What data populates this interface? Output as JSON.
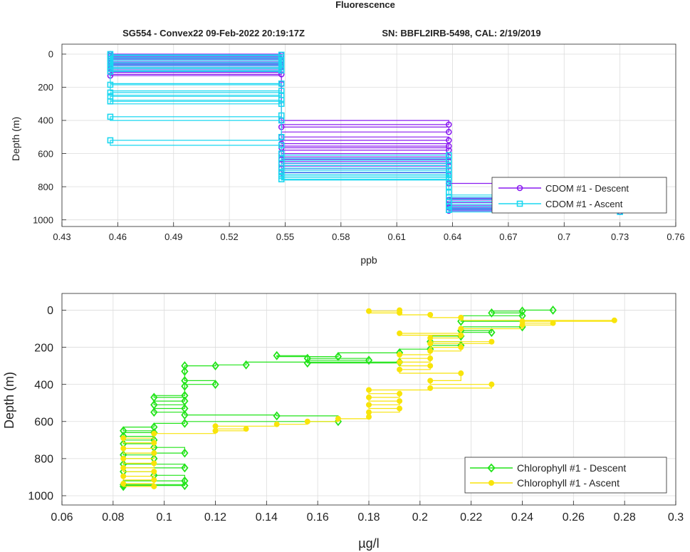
{
  "figure": {
    "title": "Fluorescence",
    "subtitle_left": "SG554 - Convex22 09-Feb-2022 20:19:17Z",
    "subtitle_right": "SN: BBFL2IRB-5498, CAL: 2/19/2019"
  },
  "chart_data": [
    {
      "type": "line",
      "xlabel": "ppb",
      "ylabel": "Depth (m)",
      "xlim": [
        0.43,
        0.76
      ],
      "ylim": [
        1040,
        -60
      ],
      "y_reversed": true,
      "grid": true,
      "legend_position": "lower-right",
      "xticks": [
        "0.43",
        "0.46",
        "0.49",
        "0.52",
        "0.55",
        "0.58",
        "0.61",
        "0.64",
        "0.67",
        "0.7",
        "0.73",
        "0.76"
      ],
      "yticks": [
        "0",
        "200",
        "400",
        "600",
        "800",
        "1000"
      ],
      "series": [
        {
          "name": "CDOM #1 - Descent",
          "color": "#8a1cf0",
          "marker": "circle",
          "points": [
            [
              0.456,
              0
            ],
            [
              0.548,
              5
            ],
            [
              0.456,
              12
            ],
            [
              0.548,
              18
            ],
            [
              0.456,
              25
            ],
            [
              0.548,
              32
            ],
            [
              0.456,
              40
            ],
            [
              0.548,
              48
            ],
            [
              0.456,
              56
            ],
            [
              0.548,
              64
            ],
            [
              0.456,
              72
            ],
            [
              0.548,
              80
            ],
            [
              0.456,
              90
            ],
            [
              0.548,
              100
            ],
            [
              0.456,
              110
            ],
            [
              0.548,
              122
            ],
            [
              0.456,
              130
            ],
            [
              0.548,
              180
            ],
            [
              0.548,
              400
            ],
            [
              0.638,
              425
            ],
            [
              0.548,
              440
            ],
            [
              0.638,
              470
            ],
            [
              0.548,
              500
            ],
            [
              0.638,
              520
            ],
            [
              0.548,
              540
            ],
            [
              0.638,
              555
            ],
            [
              0.548,
              565
            ],
            [
              0.638,
              580
            ],
            [
              0.548,
              600
            ],
            [
              0.638,
              620
            ],
            [
              0.548,
              635
            ],
            [
              0.638,
              648
            ],
            [
              0.548,
              660
            ],
            [
              0.638,
              675
            ],
            [
              0.548,
              690
            ],
            [
              0.638,
              700
            ],
            [
              0.548,
              715
            ],
            [
              0.638,
              730
            ],
            [
              0.638,
              780
            ],
            [
              0.73,
              870
            ],
            [
              0.638,
              880
            ],
            [
              0.73,
              895
            ],
            [
              0.638,
              905
            ],
            [
              0.73,
              915
            ],
            [
              0.638,
              925
            ],
            [
              0.73,
              935
            ],
            [
              0.638,
              945
            ],
            [
              0.73,
              952
            ]
          ]
        },
        {
          "name": "CDOM #1 - Ascent",
          "color": "#1ad7f0",
          "marker": "square",
          "points": [
            [
              0.73,
              952
            ],
            [
              0.638,
              940
            ],
            [
              0.73,
              930
            ],
            [
              0.638,
              918
            ],
            [
              0.73,
              905
            ],
            [
              0.638,
              890
            ],
            [
              0.73,
              875
            ],
            [
              0.638,
              862
            ],
            [
              0.73,
              850
            ],
            [
              0.638,
              835
            ],
            [
              0.638,
              800
            ],
            [
              0.638,
              760
            ],
            [
              0.548,
              755
            ],
            [
              0.638,
              745
            ],
            [
              0.548,
              735
            ],
            [
              0.638,
              725
            ],
            [
              0.548,
              712
            ],
            [
              0.638,
              700
            ],
            [
              0.548,
              688
            ],
            [
              0.638,
              672
            ],
            [
              0.548,
              658
            ],
            [
              0.638,
              640
            ],
            [
              0.548,
              628
            ],
            [
              0.638,
              610
            ],
            [
              0.548,
              600
            ],
            [
              0.548,
              550
            ],
            [
              0.456,
              520
            ],
            [
              0.548,
              500
            ],
            [
              0.548,
              400
            ],
            [
              0.456,
              378
            ],
            [
              0.548,
              370
            ],
            [
              0.548,
              300
            ],
            [
              0.456,
              285
            ],
            [
              0.548,
              278
            ],
            [
              0.456,
              255
            ],
            [
              0.548,
              248
            ],
            [
              0.456,
              232
            ],
            [
              0.548,
              222
            ],
            [
              0.456,
              185
            ],
            [
              0.548,
              178
            ],
            [
              0.456,
              105
            ],
            [
              0.548,
              98
            ],
            [
              0.456,
              88
            ],
            [
              0.548,
              80
            ],
            [
              0.456,
              70
            ],
            [
              0.548,
              60
            ],
            [
              0.456,
              50
            ],
            [
              0.548,
              40
            ],
            [
              0.456,
              30
            ],
            [
              0.548,
              20
            ],
            [
              0.456,
              10
            ],
            [
              0.548,
              4
            ],
            [
              0.456,
              0
            ]
          ]
        }
      ]
    },
    {
      "type": "line",
      "xlabel": "µg/l",
      "ylabel": "Depth (m)",
      "xlim": [
        0.06,
        0.3
      ],
      "ylim": [
        1050,
        -90
      ],
      "y_reversed": true,
      "grid": true,
      "legend_position": "lower-right",
      "xticks": [
        "0.06",
        "0.08",
        "0.1",
        "0.12",
        "0.14",
        "0.16",
        "0.18",
        "0.2",
        "0.22",
        "0.24",
        "0.26",
        "0.28",
        "0.3"
      ],
      "yticks": [
        "0",
        "200",
        "400",
        "600",
        "800",
        "1000"
      ],
      "series": [
        {
          "name": "Chlorophyll #1 - Descent",
          "color": "#22e41a",
          "marker": "diamond",
          "points": [
            [
              0.252,
              0
            ],
            [
              0.24,
              5
            ],
            [
              0.228,
              15
            ],
            [
              0.24,
              30
            ],
            [
              0.216,
              60
            ],
            [
              0.24,
              90
            ],
            [
              0.216,
              110
            ],
            [
              0.228,
              120
            ],
            [
              0.216,
              140
            ],
            [
              0.204,
              170
            ],
            [
              0.216,
              190
            ],
            [
              0.204,
              210
            ],
            [
              0.192,
              230
            ],
            [
              0.168,
              250
            ],
            [
              0.144,
              245
            ],
            [
              0.156,
              260
            ],
            [
              0.18,
              270
            ],
            [
              0.156,
              285
            ],
            [
              0.192,
              280
            ],
            [
              0.132,
              295
            ],
            [
              0.12,
              300
            ],
            [
              0.108,
              300
            ],
            [
              0.108,
              330
            ],
            [
              0.108,
              380
            ],
            [
              0.12,
              400
            ],
            [
              0.108,
              410
            ],
            [
              0.108,
              460
            ],
            [
              0.096,
              470
            ],
            [
              0.108,
              490
            ],
            [
              0.096,
              510
            ],
            [
              0.108,
              530
            ],
            [
              0.096,
              550
            ],
            [
              0.108,
              565
            ],
            [
              0.144,
              570
            ],
            [
              0.168,
              600
            ],
            [
              0.108,
              610
            ],
            [
              0.096,
              630
            ],
            [
              0.084,
              650
            ],
            [
              0.096,
              660
            ],
            [
              0.084,
              680
            ],
            [
              0.096,
              700
            ],
            [
              0.084,
              720
            ],
            [
              0.096,
              740
            ],
            [
              0.108,
              770
            ],
            [
              0.084,
              780
            ],
            [
              0.096,
              800
            ],
            [
              0.084,
              830
            ],
            [
              0.108,
              850
            ],
            [
              0.084,
              870
            ],
            [
              0.096,
              890
            ],
            [
              0.108,
              920
            ],
            [
              0.084,
              940
            ],
            [
              0.108,
              945
            ],
            [
              0.084,
              950
            ]
          ]
        },
        {
          "name": "Chlorophyll #1 - Ascent",
          "color": "#f8e40a",
          "marker": "circle",
          "points": [
            [
              0.096,
              950
            ],
            [
              0.084,
              935
            ],
            [
              0.096,
              915
            ],
            [
              0.084,
              895
            ],
            [
              0.096,
              870
            ],
            [
              0.084,
              850
            ],
            [
              0.096,
              825
            ],
            [
              0.084,
              800
            ],
            [
              0.096,
              770
            ],
            [
              0.084,
              745
            ],
            [
              0.096,
              715
            ],
            [
              0.084,
              690
            ],
            [
              0.096,
              665
            ],
            [
              0.12,
              650
            ],
            [
              0.132,
              640
            ],
            [
              0.12,
              625
            ],
            [
              0.144,
              615
            ],
            [
              0.156,
              600
            ],
            [
              0.168,
              585
            ],
            [
              0.18,
              575
            ],
            [
              0.18,
              550
            ],
            [
              0.192,
              530
            ],
            [
              0.18,
              510
            ],
            [
              0.192,
              490
            ],
            [
              0.18,
              470
            ],
            [
              0.192,
              450
            ],
            [
              0.18,
              430
            ],
            [
              0.204,
              420
            ],
            [
              0.228,
              400
            ],
            [
              0.204,
              380
            ],
            [
              0.216,
              340
            ],
            [
              0.192,
              320
            ],
            [
              0.204,
              300
            ],
            [
              0.192,
              280
            ],
            [
              0.204,
              260
            ],
            [
              0.192,
              240
            ],
            [
              0.204,
              220
            ],
            [
              0.216,
              200
            ],
            [
              0.204,
              180
            ],
            [
              0.228,
              170
            ],
            [
              0.204,
              150
            ],
            [
              0.216,
              135
            ],
            [
              0.192,
              125
            ],
            [
              0.216,
              100
            ],
            [
              0.24,
              80
            ],
            [
              0.252,
              70
            ],
            [
              0.24,
              60
            ],
            [
              0.276,
              55
            ],
            [
              0.216,
              40
            ],
            [
              0.204,
              25
            ],
            [
              0.192,
              15
            ],
            [
              0.18,
              5
            ],
            [
              0.192,
              0
            ]
          ]
        }
      ]
    }
  ]
}
